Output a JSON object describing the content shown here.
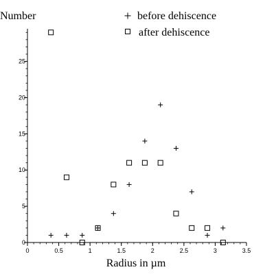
{
  "chart_data": {
    "type": "scatter",
    "title": "",
    "xlabel": "Radius in µm",
    "ylabel": "Number",
    "xlim": [
      0,
      3.5
    ],
    "ylim": [
      0,
      29.5
    ],
    "xticks": [
      0,
      0.5,
      1,
      1.5,
      2,
      2.5,
      3,
      3.5
    ],
    "xtick_labels": [
      "0",
      "0.5",
      "1",
      "1.5",
      "2",
      "2.5",
      "3",
      "3.5"
    ],
    "yticks": [
      0,
      5,
      10,
      15,
      20,
      25
    ],
    "ytick_labels": [
      "0",
      "5",
      "10",
      "15",
      "20",
      "25"
    ],
    "legend_position": "top-right",
    "grid": false,
    "series": [
      {
        "name": "before dehiscence",
        "marker": "plus",
        "x": [
          0.375,
          0.625,
          0.875,
          1.125,
          1.375,
          1.625,
          1.875,
          2.125,
          2.375,
          2.625,
          2.875,
          3.125
        ],
        "y": [
          1,
          1,
          1,
          2,
          4,
          8,
          14,
          19,
          13,
          7,
          1,
          2
        ]
      },
      {
        "name": "after dehiscence",
        "marker": "square",
        "x": [
          0.375,
          0.625,
          0.875,
          1.125,
          1.375,
          1.625,
          1.875,
          2.125,
          2.375,
          2.625,
          2.875,
          3.125
        ],
        "y": [
          29,
          9,
          0,
          2,
          8,
          11,
          11,
          11,
          4,
          2,
          2,
          0
        ]
      }
    ]
  }
}
